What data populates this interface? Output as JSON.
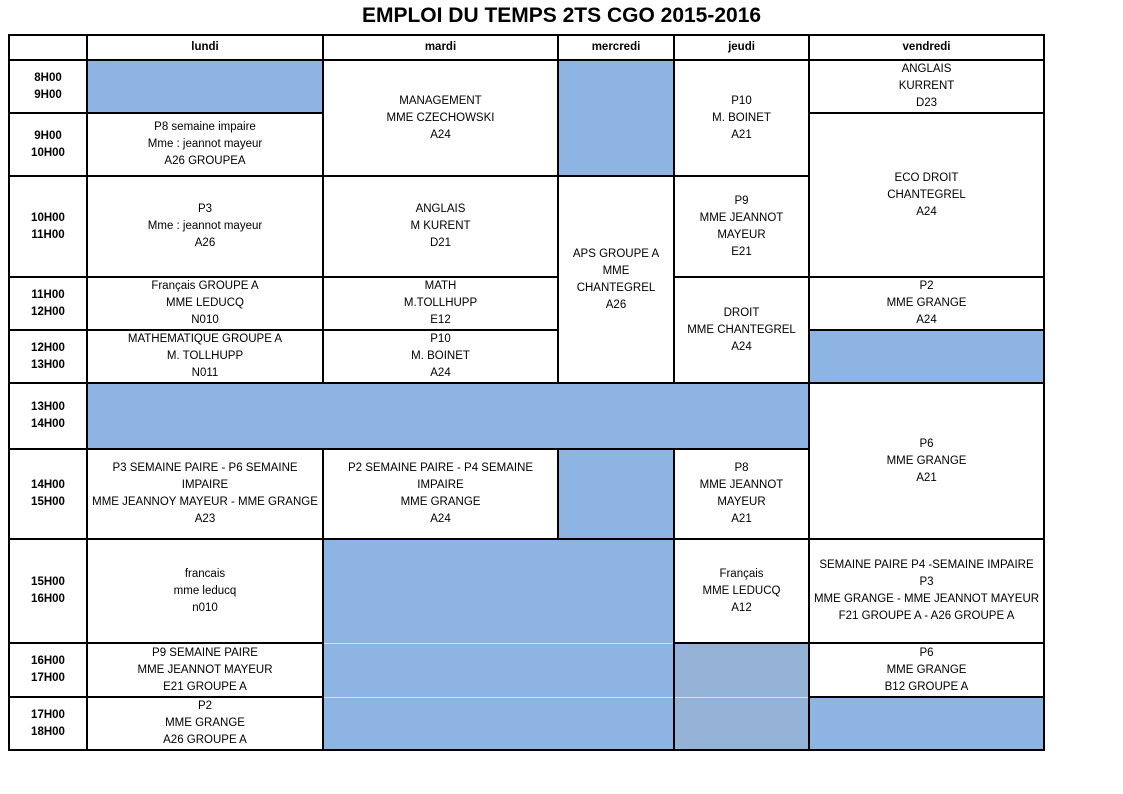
{
  "title": "EMPLOI DU TEMPS 2TS CGO 2015-2016",
  "colors": {
    "cell_blue": "#8db4e2",
    "cell_blue_muted": "#95b3d7",
    "border": "#000000",
    "background": "#ffffff"
  },
  "days": [
    "lundi",
    "mardi",
    "mercredi",
    "jeudi",
    "vendredi"
  ],
  "times": [
    [
      "8H00",
      "9H00"
    ],
    [
      "9H00",
      "10H00"
    ],
    [
      "10H00",
      "11H00"
    ],
    [
      "11H00",
      "12H00"
    ],
    [
      "12H00",
      "13H00"
    ],
    [
      "13H00",
      "14H00"
    ],
    [
      "14H00",
      "15H00"
    ],
    [
      "15H00",
      "16H00"
    ],
    [
      "16H00",
      "17H00"
    ],
    [
      "17H00",
      "18H00"
    ]
  ],
  "cells": {
    "lun_9_10": [
      "P8 semaine impaire",
      "Mme : jeannot mayeur",
      "A26 GROUPEA"
    ],
    "lun_10_11": [
      "P3",
      "Mme : jeannot mayeur",
      "A26"
    ],
    "lun_11_12": [
      "Français GROUPE A",
      "MME LEDUCQ",
      "N010"
    ],
    "lun_12_13": [
      "MATHEMATIQUE GROUPE A",
      "M. TOLLHUPP",
      "N011"
    ],
    "lun_14_15": [
      "P3 SEMAINE PAIRE - P6 SEMAINE IMPAIRE",
      "MME JEANNOY MAYEUR - MME GRANGE",
      "A23"
    ],
    "lun_15_16": [
      "francais",
      "mme leducq",
      "n010"
    ],
    "lun_16_17": [
      "P9 SEMAINE PAIRE",
      "MME JEANNOT MAYEUR",
      "E21 GROUPE A"
    ],
    "lun_17_18": [
      "P2",
      "MME GRANGE",
      "A26 GROUPE A"
    ],
    "mar_8_10": [
      "MANAGEMENT",
      "MME CZECHOWSKI",
      "A24"
    ],
    "mar_10_11": [
      "ANGLAIS",
      "M KURENT",
      "D21"
    ],
    "mar_11_12": [
      "MATH",
      "M.TOLLHUPP",
      "E12"
    ],
    "mar_12_13": [
      "P10",
      "M. BOINET",
      "A24"
    ],
    "mar_14_15": [
      "P2 SEMAINE PAIRE - P4 SEMAINE IMPAIRE",
      "MME GRANGE",
      "A24"
    ],
    "mer_10_13": [
      "APS GROUPE A",
      "MME",
      "CHANTEGREL",
      "A26"
    ],
    "jeu_8_10": [
      "P10",
      "M. BOINET",
      "A21"
    ],
    "jeu_10_11": [
      "P9",
      "MME JEANNOT MAYEUR",
      "E21"
    ],
    "jeu_11_13": [
      "DROIT",
      "MME CHANTEGREL",
      "A24"
    ],
    "jeu_14_15": [
      "P8",
      "MME JEANNOT MAYEUR",
      "A21"
    ],
    "jeu_15_16": [
      "Français",
      "MME LEDUCQ",
      "A12"
    ],
    "ven_8_9": [
      "ANGLAIS",
      "KURRENT",
      "D23"
    ],
    "ven_9_11": [
      "ECO DROIT",
      "CHANTEGREL",
      "A24"
    ],
    "ven_11_12": [
      "P2",
      "MME GRANGE",
      "A24"
    ],
    "ven_13_15": [
      "P6",
      "MME GRANGE",
      "A21"
    ],
    "ven_15_16": [
      "SEMAINE PAIRE P4 -SEMAINE IMPAIRE P3",
      "MME GRANGE - MME JEANNOT MAYEUR",
      "F21 GROUPE A - A26 GROUPE A"
    ],
    "ven_16_17": [
      "P6",
      "MME GRANGE",
      "B12 GROUPE A"
    ]
  }
}
